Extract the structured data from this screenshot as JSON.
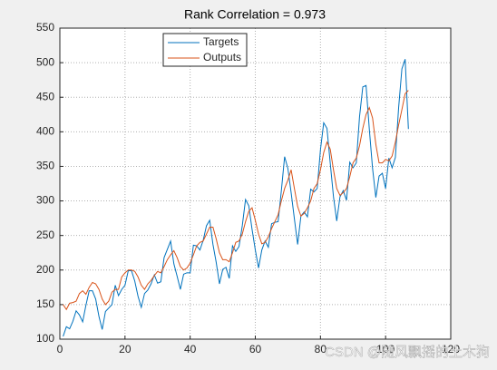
{
  "chart_data": {
    "type": "line",
    "title": "Rank Correlation = 0.973",
    "x": [
      1,
      2,
      3,
      4,
      5,
      6,
      7,
      8,
      9,
      10,
      11,
      12,
      13,
      14,
      15,
      16,
      17,
      18,
      19,
      20,
      21,
      22,
      23,
      24,
      25,
      26,
      27,
      28,
      29,
      30,
      31,
      32,
      33,
      34,
      35,
      36,
      37,
      38,
      39,
      40,
      41,
      42,
      43,
      44,
      45,
      46,
      47,
      48,
      49,
      50,
      51,
      52,
      53,
      54,
      55,
      56,
      57,
      58,
      59,
      60,
      61,
      62,
      63,
      64,
      65,
      66,
      67,
      68,
      69,
      70,
      71,
      72,
      73,
      74,
      75,
      76,
      77,
      78,
      79,
      80,
      81,
      82,
      83,
      84,
      85,
      86,
      87,
      88,
      89,
      90,
      91,
      92,
      93,
      94,
      95,
      96,
      97,
      98,
      99,
      100,
      101,
      102,
      103,
      104,
      105,
      106,
      107
    ],
    "series": [
      {
        "name": "Targets",
        "color": "#0072BD",
        "values": [
          104,
          118,
          115,
          126,
          141,
          135,
          125,
          149,
          170,
          170,
          158,
          133,
          114,
          140,
          145,
          150,
          178,
          163,
          172,
          178,
          199,
          199,
          184,
          162,
          146,
          166,
          171,
          180,
          193,
          181,
          183,
          218,
          230,
          242,
          209,
          191,
          172,
          194,
          196,
          196,
          236,
          235,
          229,
          243,
          264,
          272,
          237,
          211,
          180,
          201,
          204,
          188,
          235,
          227,
          234,
          264,
          302,
          293,
          259,
          229,
          203,
          229,
          242,
          233,
          267,
          269,
          270,
          315,
          364,
          347,
          312,
          274,
          237,
          278,
          284,
          277,
          317,
          313,
          318,
          374,
          413,
          405,
          355,
          306,
          271,
          306,
          315,
          301,
          356,
          348,
          355,
          422,
          465,
          467,
          404,
          347,
          305,
          336,
          340,
          318,
          362,
          348,
          363,
          435,
          491,
          505,
          404
        ]
      },
      {
        "name": "Outputs",
        "color": "#D95319",
        "values": [
          150,
          143,
          152,
          153,
          155,
          166,
          170,
          165,
          175,
          182,
          180,
          172,
          158,
          150,
          155,
          168,
          172,
          172,
          190,
          196,
          200,
          200,
          198,
          190,
          178,
          172,
          180,
          185,
          192,
          198,
          196,
          205,
          215,
          222,
          228,
          218,
          205,
          200,
          203,
          210,
          222,
          235,
          240,
          242,
          252,
          262,
          262,
          245,
          225,
          215,
          215,
          212,
          225,
          240,
          242,
          252,
          270,
          285,
          290,
          272,
          252,
          238,
          240,
          248,
          260,
          270,
          280,
          300,
          318,
          330,
          345,
          318,
          292,
          278,
          282,
          290,
          300,
          318,
          325,
          345,
          370,
          385,
          375,
          345,
          318,
          308,
          312,
          318,
          335,
          355,
          362,
          380,
          405,
          425,
          435,
          420,
          382,
          355,
          355,
          360,
          358,
          365,
          385,
          410,
          432,
          455,
          460
        ]
      }
    ],
    "xlim": [
      0,
      120
    ],
    "xticks": [
      0,
      20,
      40,
      60,
      80,
      100,
      120
    ],
    "ylim": [
      100,
      550
    ],
    "yticks": [
      100,
      150,
      200,
      250,
      300,
      350,
      400,
      450,
      500,
      550
    ],
    "grid": true,
    "legend": "north-west",
    "watermark": "CSDN @随风飘摇的土木狗"
  }
}
